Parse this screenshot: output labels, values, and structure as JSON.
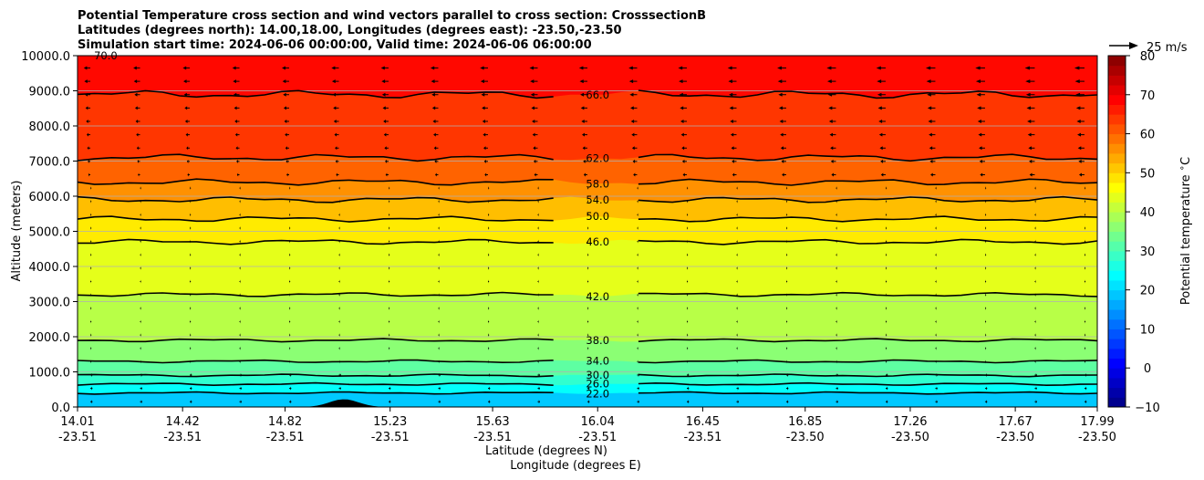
{
  "chart_data": {
    "type": "contour",
    "title_lines": [
      "Potential Temperature cross section and wind vectors parallel to cross section: CrosssectionB",
      "Latitudes (degrees north): 14.00,18.00, Longitudes (degrees east): -23.50,-23.50",
      "Simulation start time: 2024-06-06 00:00:00, Valid time: 2024-06-06 06:00:00"
    ],
    "ylabel": "Altitude (meters)",
    "xlabel": "Latitude (degrees N)",
    "xlabel2": "Longitude (degrees E)",
    "ylim": [
      0,
      10000
    ],
    "yticks": [
      "0.0",
      "1000.0",
      "2000.0",
      "3000.0",
      "4000.0",
      "5000.0",
      "6000.0",
      "7000.0",
      "8000.0",
      "9000.0",
      "10000.0"
    ],
    "ytick_values": [
      0,
      1000,
      2000,
      3000,
      4000,
      5000,
      6000,
      7000,
      8000,
      9000,
      10000
    ],
    "xlim": [
      14.01,
      17.99
    ],
    "xtick_lat": [
      "14.01",
      "14.42",
      "14.82",
      "15.23",
      "15.63",
      "16.04",
      "16.45",
      "16.85",
      "17.26",
      "17.67",
      "17.99"
    ],
    "xtick_lon": [
      "-23.51",
      "-23.51",
      "-23.51",
      "-23.51",
      "-23.51",
      "-23.51",
      "-23.51",
      "-23.50",
      "-23.50",
      "-23.50",
      "-23.50"
    ],
    "xtick_values": [
      14.01,
      14.42,
      14.82,
      15.23,
      15.63,
      16.04,
      16.45,
      16.85,
      17.26,
      17.67,
      17.99
    ],
    "colorbar": {
      "label": "Potential temperature $^\\circ$C",
      "range": [
        -10,
        80
      ],
      "ticks": [
        "80",
        "70",
        "60",
        "50",
        "40",
        "30",
        "20",
        "10",
        "0",
        "−10"
      ],
      "tick_values": [
        80,
        70,
        60,
        50,
        40,
        30,
        20,
        10,
        0,
        -10
      ],
      "colormap": "jet"
    },
    "quiver_key": "25 m/s",
    "contours": [
      {
        "label": "22.0",
        "value": 22,
        "altitude": 400
      },
      {
        "label": "26.0",
        "value": 26,
        "altitude": 650
      },
      {
        "label": "30.0",
        "value": 30,
        "altitude": 900
      },
      {
        "label": "34.0",
        "value": 34,
        "altitude": 1300
      },
      {
        "label": "38.0",
        "value": 38,
        "altitude": 1900
      },
      {
        "label": "42.0",
        "value": 42,
        "altitude": 3200
      },
      {
        "label": "46.0",
        "value": 46,
        "altitude": 4700
      },
      {
        "label": "50.0",
        "value": 50,
        "altitude": 5350
      },
      {
        "label": "54.0",
        "value": 54,
        "altitude": 5900
      },
      {
        "label": "58.0",
        "value": 58,
        "altitude": 6400
      },
      {
        "label": "62.0",
        "value": 62,
        "altitude": 7100
      },
      {
        "label": "66.0",
        "value": 66,
        "altitude": 8900
      },
      {
        "label": "70.0",
        "value": 70,
        "altitude": 10000
      }
    ],
    "fill_bands": [
      {
        "top": 400,
        "value": 19
      },
      {
        "top": 650,
        "value": 24
      },
      {
        "top": 900,
        "value": 28
      },
      {
        "top": 1300,
        "value": 32
      },
      {
        "top": 1900,
        "value": 36
      },
      {
        "top": 3200,
        "value": 40
      },
      {
        "top": 4700,
        "value": 44
      },
      {
        "top": 5350,
        "value": 48
      },
      {
        "top": 5900,
        "value": 52
      },
      {
        "top": 6400,
        "value": 56
      },
      {
        "top": 7100,
        "value": 60
      },
      {
        "top": 8900,
        "value": 64
      },
      {
        "top": 10000,
        "value": 68
      }
    ],
    "terrain_peak": {
      "lat": 15.05,
      "altitude": 220
    },
    "grid": true,
    "grid_axis": "y"
  }
}
